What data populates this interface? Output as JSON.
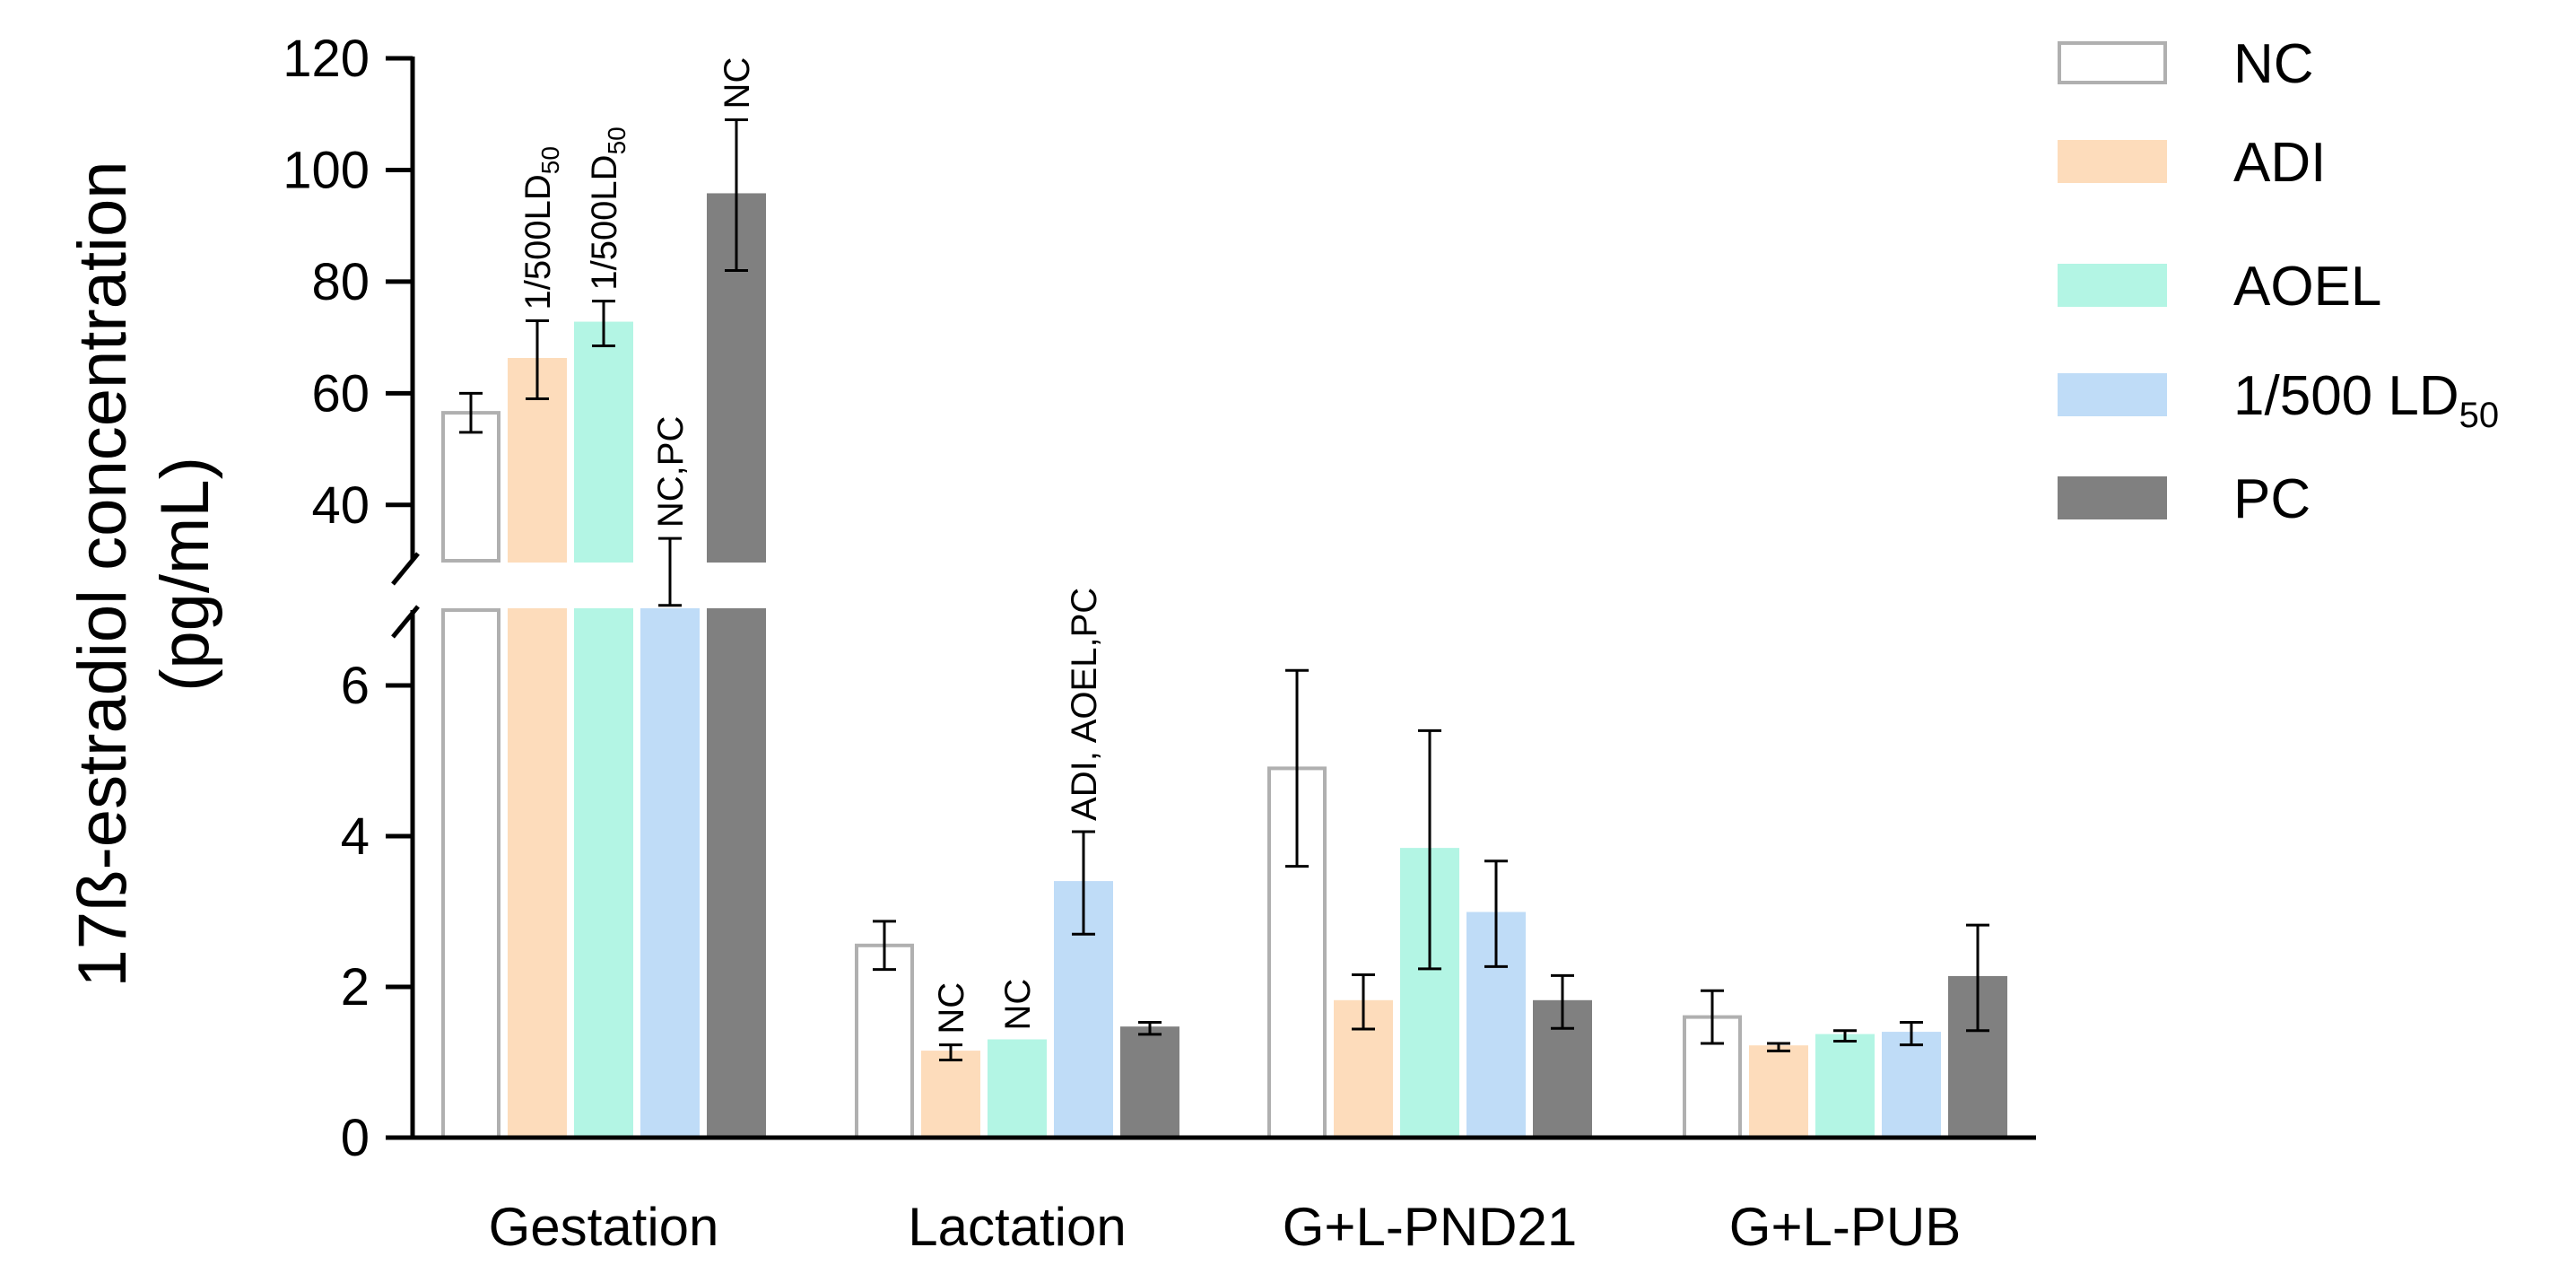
{
  "chart_data": {
    "type": "bar",
    "ylabel": "17ß-estradiol concentration",
    "ylabel_unit": "(pg/mL)",
    "categories": [
      "Gestation",
      "Lactation",
      "G+L-PND21",
      "G+L-PUB"
    ],
    "y_axis_broken": true,
    "lower_ylim": [
      0,
      7
    ],
    "upper_ylim": [
      30,
      120
    ],
    "lower_ticks": [
      "0",
      "2",
      "4",
      "6"
    ],
    "upper_ticks": [
      "40",
      "60",
      "80",
      "100",
      "120"
    ],
    "legend_position": "top-right",
    "series": [
      {
        "name": "NC",
        "color": "#ffffff",
        "edge": "#b0b0b0",
        "values": [
          56.5,
          2.55,
          4.9,
          1.6
        ],
        "errors": [
          3.5,
          0.32,
          1.3,
          0.35
        ]
      },
      {
        "name": "ADI",
        "color": "#fddcbb",
        "edge": "#fddcbb",
        "values": [
          66,
          1.13,
          1.8,
          1.2
        ],
        "errors": [
          7,
          0.1,
          0.36,
          0.05
        ]
      },
      {
        "name": "AOEL",
        "color": "#b3f5e4",
        "edge": "#b3f5e4",
        "values": [
          72.5,
          1.28,
          3.82,
          1.35
        ],
        "errors": [
          4,
          0,
          1.58,
          0.07
        ]
      },
      {
        "name": "1/500 LD",
        "name_sub": "50",
        "color": "#bfdcf7",
        "edge": "#bfdcf7",
        "values": [
          28,
          3.38,
          2.97,
          1.38
        ],
        "errors": [
          6,
          0.68,
          0.7,
          0.15
        ]
      },
      {
        "name": "PC",
        "color": "#808080",
        "edge": "#808080",
        "values": [
          95.5,
          1.45,
          1.8,
          2.12
        ],
        "errors": [
          13.5,
          0.08,
          0.35,
          0.7
        ]
      }
    ],
    "annotations": [
      {
        "category": 0,
        "series": 1,
        "text": "1/500LD",
        "sub": "50"
      },
      {
        "category": 0,
        "series": 2,
        "text": "1/500LD",
        "sub": "50"
      },
      {
        "category": 0,
        "series": 3,
        "text": "NC,PC",
        "sub": ""
      },
      {
        "category": 0,
        "series": 4,
        "text": "NC",
        "sub": ""
      },
      {
        "category": 1,
        "series": 1,
        "text": "NC",
        "sub": ""
      },
      {
        "category": 1,
        "series": 2,
        "text": "NC",
        "sub": ""
      },
      {
        "category": 1,
        "series": 3,
        "text": "ADI, AOEL,PC",
        "sub": ""
      }
    ]
  }
}
